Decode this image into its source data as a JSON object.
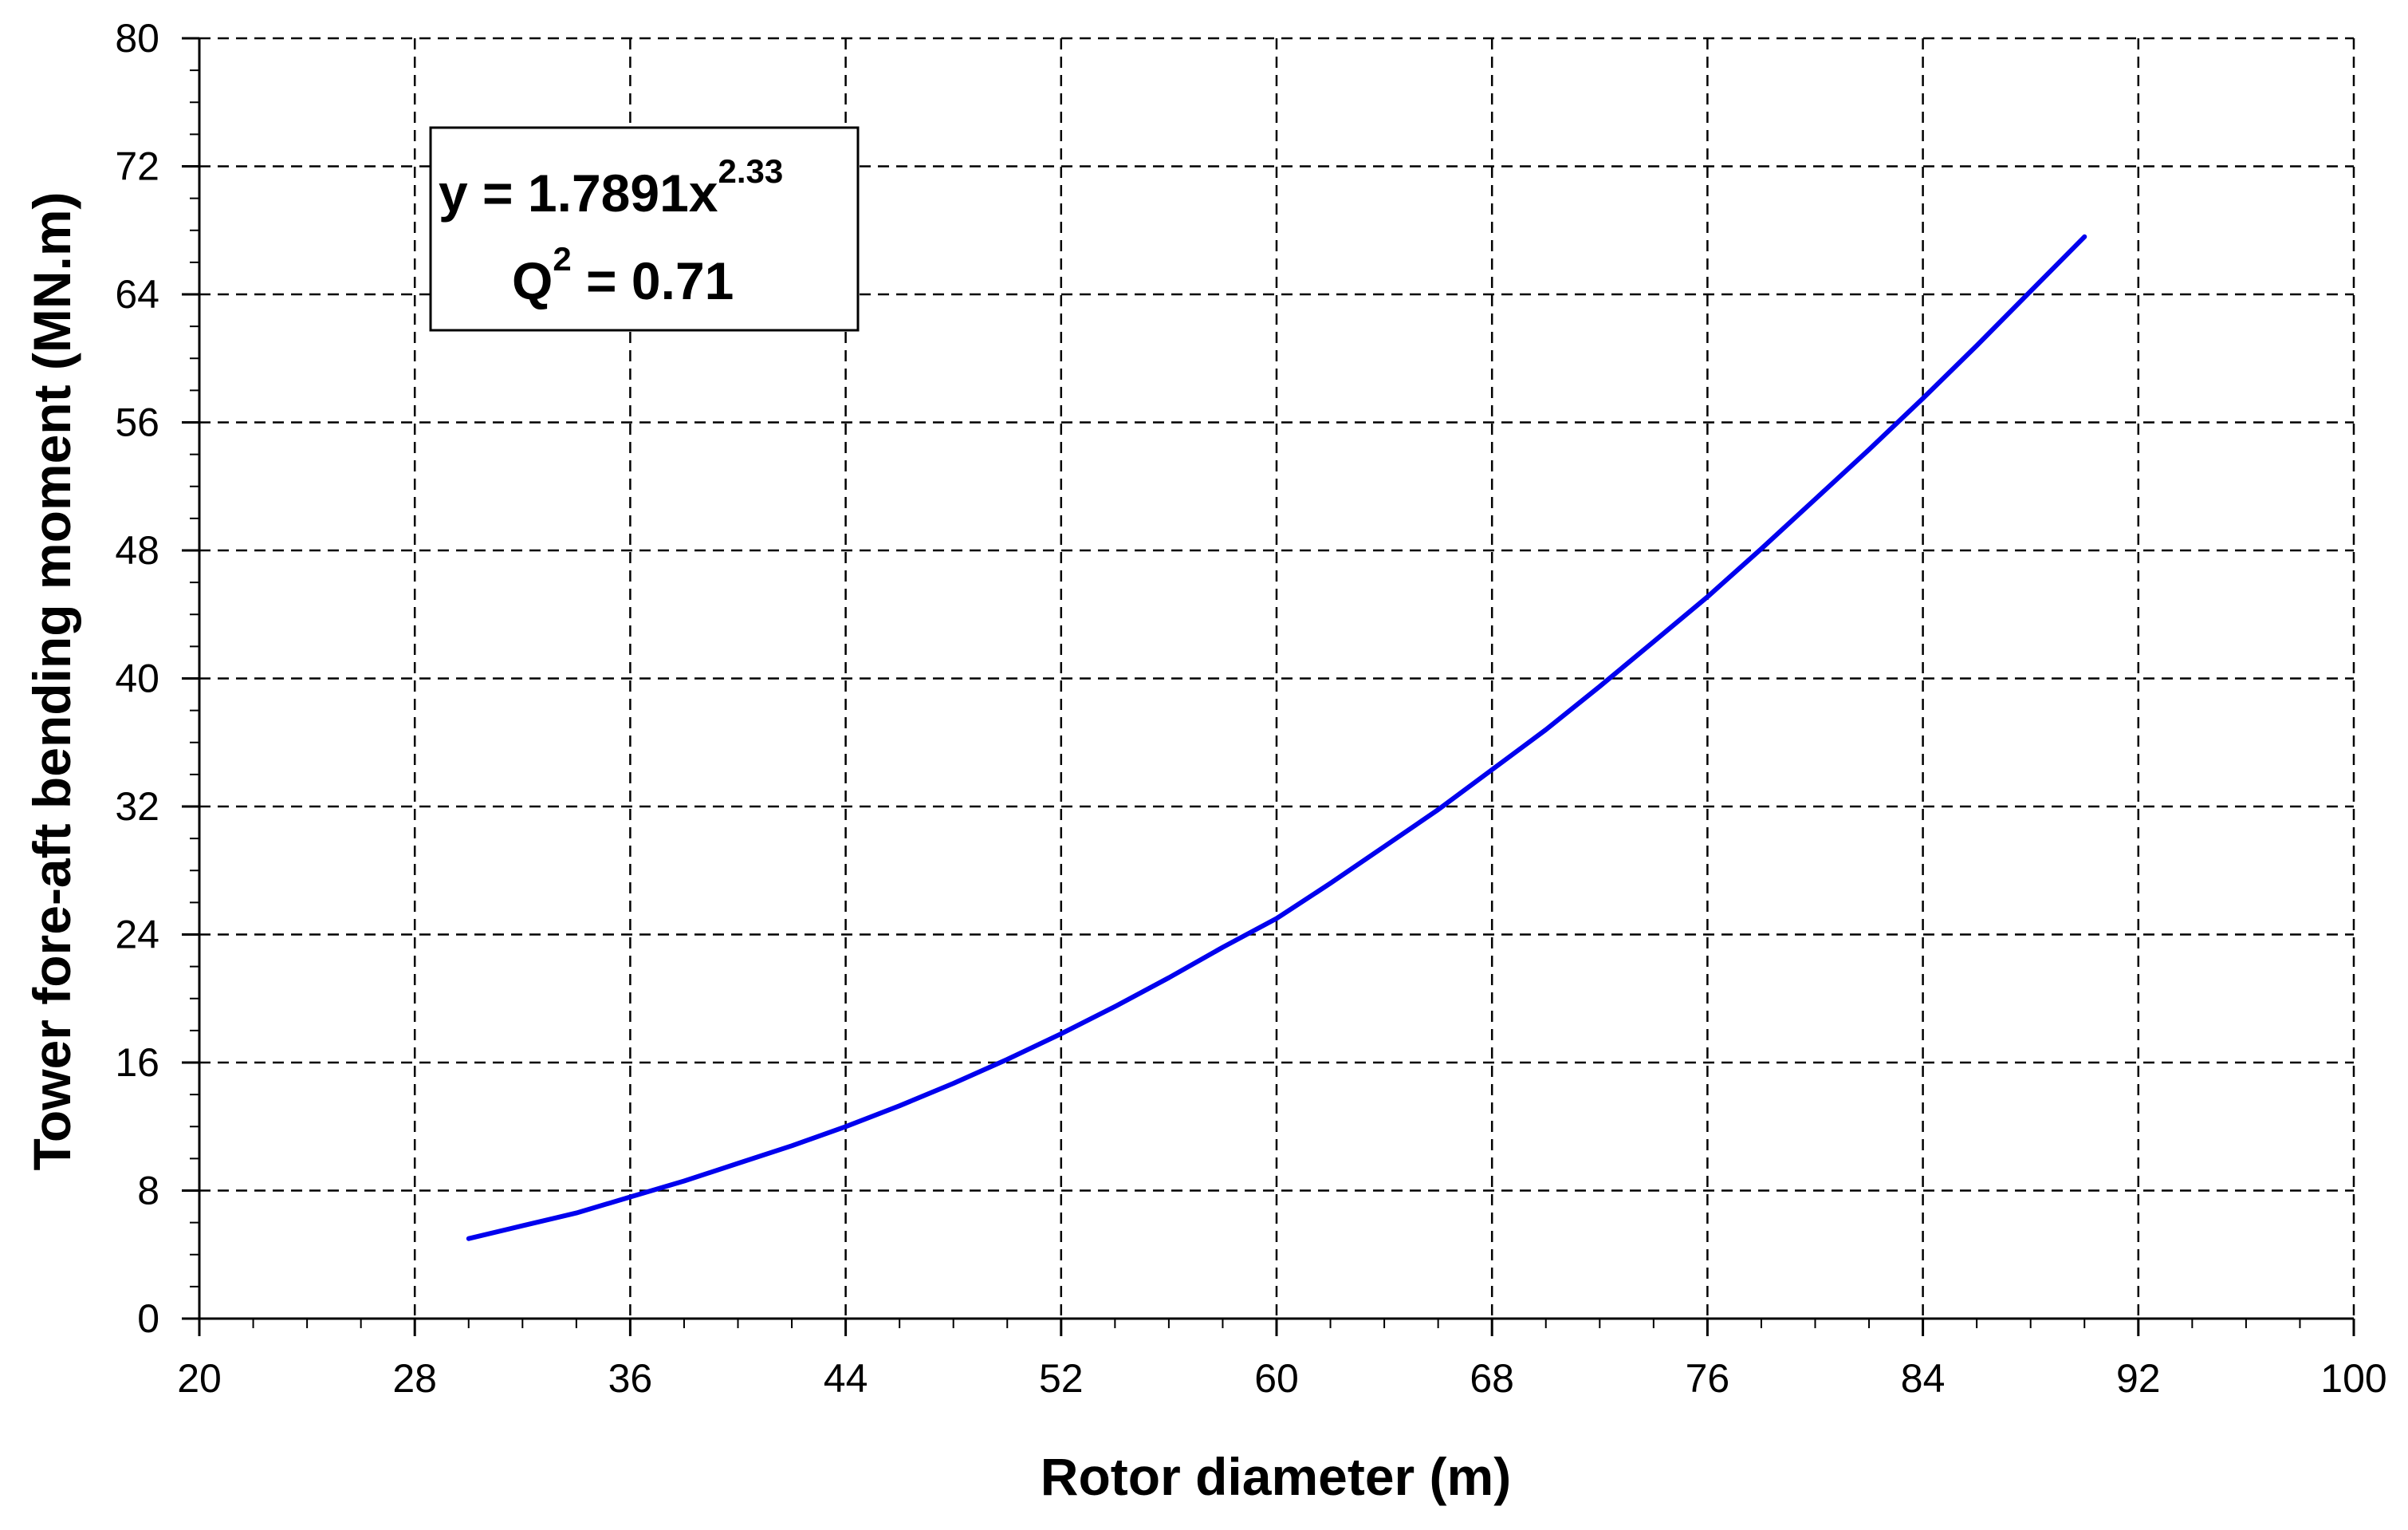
{
  "chart_data": {
    "type": "line",
    "xlabel": "Rotor diameter (m)",
    "ylabel": "Tower fore-aft bending moment (MN.m)",
    "xlim": [
      20,
      100
    ],
    "ylim": [
      0,
      80
    ],
    "x_ticks": [
      "20",
      "28",
      "36",
      "44",
      "52",
      "60",
      "68",
      "76",
      "84",
      "92",
      "100"
    ],
    "y_ticks": [
      "0",
      "8",
      "16",
      "24",
      "32",
      "40",
      "48",
      "56",
      "64",
      "72",
      "80"
    ],
    "grid": true,
    "series": [
      {
        "color": "#0000ee",
        "x": [
          30,
          32,
          34,
          36,
          38,
          40,
          42,
          44,
          46,
          48,
          50,
          52,
          54,
          56,
          58,
          60,
          62,
          64,
          66,
          68,
          70,
          72,
          74,
          76,
          78,
          80,
          82,
          84,
          86,
          88,
          90
        ],
        "y": [
          5.0,
          5.8,
          6.6,
          7.6,
          8.6,
          9.7,
          10.8,
          12.0,
          13.3,
          14.7,
          16.2,
          17.8,
          19.5,
          21.3,
          23.2,
          25.0,
          27.2,
          29.5,
          31.8,
          34.3,
          36.8,
          39.5,
          42.3,
          45.1,
          48.1,
          51.2,
          54.3,
          57.5,
          60.8,
          64.2,
          67.6
        ]
      }
    ],
    "annotation": {
      "equation_prefix": "y = 1.7891x",
      "equation_exponent": "2.33",
      "q_base": "Q",
      "q_exponent": "2",
      "q_value": " = 0.71"
    }
  }
}
